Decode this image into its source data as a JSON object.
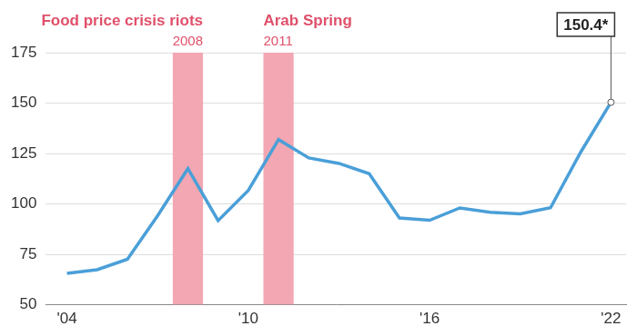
{
  "chart_data": {
    "type": "line",
    "x": [
      2004,
      2005,
      2006,
      2007,
      2008,
      2009,
      2010,
      2011,
      2012,
      2013,
      2014,
      2015,
      2016,
      2017,
      2018,
      2019,
      2020,
      2021,
      2022
    ],
    "values": [
      65.6,
      67.4,
      72.6,
      94.2,
      117.5,
      91.7,
      106.7,
      131.9,
      122.8,
      120.1,
      115.0,
      93.0,
      91.9,
      98.0,
      95.9,
      95.1,
      98.1,
      125.7,
      150.4
    ],
    "value_labels": [
      null,
      null,
      null,
      null,
      null,
      null,
      null,
      null,
      null,
      null,
      null,
      null,
      null,
      null,
      null,
      null,
      null,
      null,
      "150.4*"
    ],
    "data_labels": true,
    "color": "#4a9fd8",
    "xlim": [
      2003.3,
      2022.5
    ],
    "xticks": [
      {
        "value": 2004,
        "label": "'04"
      },
      {
        "value": 2010,
        "label": "'10"
      },
      {
        "value": 2016,
        "label": "'16"
      },
      {
        "value": 2022,
        "label": "'22"
      }
    ],
    "ylim": [
      50,
      175
    ],
    "yticks": [
      50,
      75,
      100,
      125,
      150,
      175
    ],
    "grid": "y",
    "annotations": [
      {
        "text": "Food price crisis riots",
        "label": "2008",
        "x": 2008,
        "color": "#f2a7b2"
      },
      {
        "text": "Arab Spring",
        "label": "2011",
        "x": 2011,
        "color": "#f2a7b2"
      }
    ]
  }
}
